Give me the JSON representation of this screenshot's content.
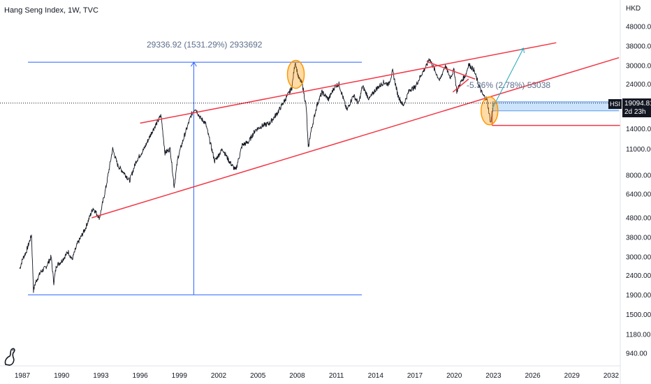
{
  "header": {
    "title": "Hang Seng Index, 1W, TVC"
  },
  "price_axis": {
    "currency": "HKD"
  },
  "symbol": {
    "code": "HSI",
    "last_price": "19094.81",
    "countdown": "2d 23h"
  },
  "colors": {
    "price_line": "#131722",
    "trend_red": "#f23645",
    "measure_blue": "#2962ff",
    "circle_orange": "#ff9800",
    "zone_blue": "#bbd9fb",
    "projection": "#22a7b5"
  },
  "annotations": {
    "measure_label": "29336.92 (1531.29%) 2933692",
    "drop_label": "-5.36% (2.78%) 53038"
  },
  "chart_data": {
    "type": "line",
    "title": "Hang Seng Index, 1W, TVC",
    "y_scale": "log",
    "ylim": [
      800,
      60000
    ],
    "xlim": [
      1986.4,
      2032.6
    ],
    "y_ticks": [
      "48000.00",
      "38000.00",
      "30000.00",
      "24000.00",
      "19000.00",
      "14000.00",
      "11000.00",
      "8000.00",
      "6400.00",
      "4800.00",
      "3800.00",
      "3000.00",
      "2400.00",
      "1900.00",
      "1500.00",
      "1180.00",
      "940.00"
    ],
    "x_ticks": [
      "1987",
      "1990",
      "1993",
      "1996",
      "1999",
      "2002",
      "2005",
      "2008",
      "2011",
      "2014",
      "2017",
      "2020",
      "2023",
      "2026",
      "2029",
      "2032"
    ],
    "series": [
      {
        "values": [
          [
            1986.8,
            2600
          ],
          [
            1987.0,
            2900
          ],
          [
            1987.3,
            3200
          ],
          [
            1987.7,
            3900
          ],
          [
            1987.85,
            2000
          ],
          [
            1988.0,
            2200
          ],
          [
            1988.4,
            2500
          ],
          [
            1988.8,
            2650
          ],
          [
            1989.2,
            3000
          ],
          [
            1989.4,
            2200
          ],
          [
            1989.6,
            2700
          ],
          [
            1990.0,
            2850
          ],
          [
            1990.5,
            3200
          ],
          [
            1990.8,
            2900
          ],
          [
            1991.2,
            3500
          ],
          [
            1991.8,
            4200
          ],
          [
            1992.4,
            5400
          ],
          [
            1992.9,
            4800
          ],
          [
            1993.4,
            7000
          ],
          [
            1993.9,
            11000
          ],
          [
            1994.3,
            9000
          ],
          [
            1994.8,
            8200
          ],
          [
            1995.2,
            7500
          ],
          [
            1995.7,
            9500
          ],
          [
            1996.3,
            11000
          ],
          [
            1996.9,
            13500
          ],
          [
            1997.6,
            16500
          ],
          [
            1997.9,
            10500
          ],
          [
            1998.3,
            11000
          ],
          [
            1998.6,
            7000
          ],
          [
            1998.9,
            10000
          ],
          [
            1999.4,
            13000
          ],
          [
            1999.9,
            16500
          ],
          [
            2000.2,
            18000
          ],
          [
            2000.6,
            16000
          ],
          [
            2001.0,
            15000
          ],
          [
            2001.7,
            9500
          ],
          [
            2002.3,
            11000
          ],
          [
            2002.8,
            9500
          ],
          [
            2003.3,
            8500
          ],
          [
            2003.8,
            11500
          ],
          [
            2004.3,
            12000
          ],
          [
            2004.8,
            13800
          ],
          [
            2005.3,
            14500
          ],
          [
            2005.9,
            15000
          ],
          [
            2006.5,
            17000
          ],
          [
            2007.1,
            20000
          ],
          [
            2007.6,
            23000
          ],
          [
            2007.85,
            31500
          ],
          [
            2008.1,
            26000
          ],
          [
            2008.4,
            24000
          ],
          [
            2008.7,
            18000
          ],
          [
            2008.85,
            11000
          ],
          [
            2009.0,
            13000
          ],
          [
            2009.5,
            18500
          ],
          [
            2009.9,
            21800
          ],
          [
            2010.4,
            20000
          ],
          [
            2010.9,
            23500
          ],
          [
            2011.2,
            24000
          ],
          [
            2011.8,
            17500
          ],
          [
            2012.3,
            21000
          ],
          [
            2012.7,
            19000
          ],
          [
            2013.0,
            23500
          ],
          [
            2013.5,
            20000
          ],
          [
            2014.0,
            22500
          ],
          [
            2014.6,
            24500
          ],
          [
            2015.0,
            24000
          ],
          [
            2015.3,
            28000
          ],
          [
            2015.7,
            21000
          ],
          [
            2016.1,
            18500
          ],
          [
            2016.6,
            22500
          ],
          [
            2017.0,
            23000
          ],
          [
            2017.5,
            27000
          ],
          [
            2017.9,
            30000
          ],
          [
            2018.1,
            32800
          ],
          [
            2018.5,
            28500
          ],
          [
            2018.9,
            25000
          ],
          [
            2019.3,
            30000
          ],
          [
            2019.7,
            26000
          ],
          [
            2020.0,
            28500
          ],
          [
            2020.2,
            22000
          ],
          [
            2020.5,
            24500
          ],
          [
            2020.9,
            27000
          ],
          [
            2021.1,
            30500
          ],
          [
            2021.5,
            28500
          ],
          [
            2021.9,
            23500
          ],
          [
            2022.2,
            21000
          ],
          [
            2022.5,
            20000
          ],
          [
            2022.8,
            15000
          ],
          [
            2023.0,
            19094.81
          ]
        ]
      }
    ],
    "annotations": {
      "trend_lines": [
        {
          "from": [
            1996.0,
            15000
          ],
          "to": [
            2027.8,
            39500
          ]
        },
        {
          "from": [
            1992.3,
            4800
          ],
          "to": [
            2032.6,
            33000
          ]
        }
      ],
      "measure": {
        "from": [
          1987.8,
          1900
        ],
        "to": [
          2000.1,
          31230
        ]
      },
      "circles_at": [
        [
          2007.9,
          27000
        ],
        [
          2022.7,
          17400
        ]
      ],
      "zone": {
        "x": [
          2022.9,
          2032.6
        ],
        "y": [
          17400,
          19400
        ]
      },
      "support_line": {
        "y": 14600,
        "x": [
          2022.9,
          2032.6
        ]
      }
    }
  }
}
